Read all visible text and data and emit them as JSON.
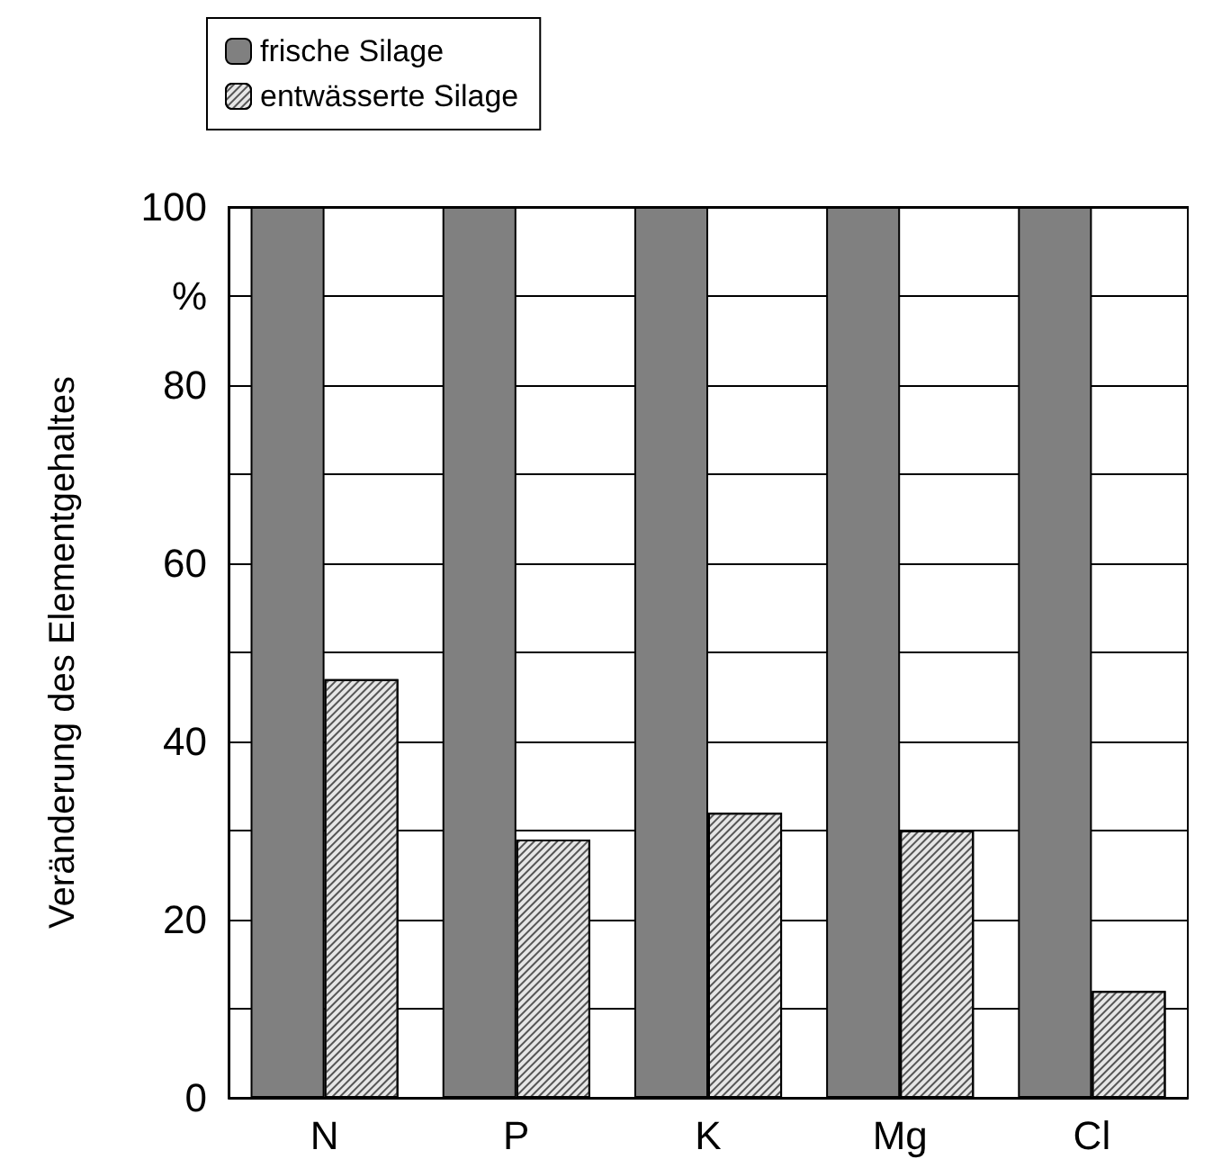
{
  "chart_data": {
    "type": "bar",
    "ylabel": "Veränderung des Elementgehaltes",
    "categories": [
      "N",
      "P",
      "K",
      "Mg",
      "Cl"
    ],
    "series": [
      {
        "name": "frische Silage",
        "color": "#808080",
        "values": [
          100,
          100,
          100,
          100,
          100
        ]
      },
      {
        "name": "entwässerte Silage",
        "color": "#e6e6e6",
        "values": [
          47,
          29,
          32,
          30,
          12
        ]
      }
    ],
    "ylim": [
      0,
      100
    ],
    "yticks": [
      0,
      {
        "value": 10,
        "label": null
      },
      20,
      {
        "value": 30,
        "label": null
      },
      40,
      {
        "value": 50,
        "label": null
      },
      60,
      {
        "value": 70,
        "label": null
      },
      80,
      {
        "value": 90,
        "label": "%"
      },
      100
    ],
    "grid": "y",
    "legend": "top left"
  }
}
